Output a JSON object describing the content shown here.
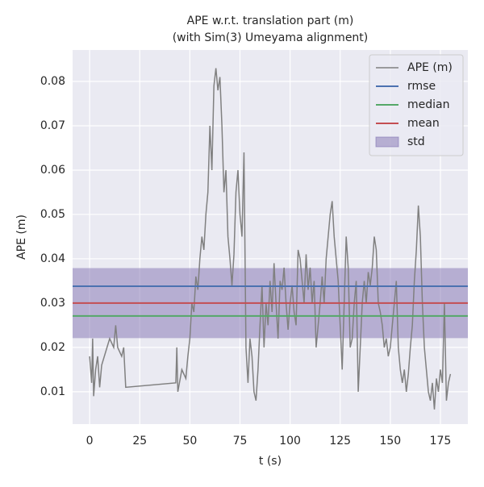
{
  "chart_data": {
    "type": "line",
    "title": [
      "APE w.r.t. translation part (m)",
      "(with Sim(3) Umeyama alignment)"
    ],
    "xlabel": "t (s)",
    "ylabel": "APE (m)",
    "xlim": [
      -8.5,
      188.7
    ],
    "ylim": [
      0.0027,
      0.0871
    ],
    "xticks": [
      0,
      25,
      50,
      75,
      100,
      125,
      150,
      175
    ],
    "yticks": [
      0.01,
      0.02,
      0.03,
      0.04,
      0.05,
      0.06,
      0.07,
      0.08
    ],
    "grid": true,
    "legend": "upper right",
    "series": [
      {
        "name": "APE (m)",
        "color": "#808080",
        "x": [
          0,
          1,
          1.5,
          2,
          3,
          4,
          5,
          6,
          8,
          10,
          12,
          13,
          14,
          16,
          17,
          18,
          43,
          43.5,
          44,
          46,
          48,
          49,
          50,
          51,
          52,
          53,
          54,
          55,
          56,
          57,
          58,
          59,
          60,
          61,
          62,
          63,
          64,
          65,
          66,
          67,
          68,
          69,
          70,
          71,
          72,
          73,
          74,
          75,
          76,
          77,
          78,
          79,
          80,
          81,
          82,
          83,
          84,
          85,
          86,
          87,
          88,
          89,
          90,
          91,
          92,
          93,
          94,
          95,
          96,
          97,
          98,
          99,
          100,
          101,
          102,
          103,
          104,
          105,
          106,
          107,
          108,
          109,
          110,
          111,
          112,
          113,
          114,
          115,
          116,
          117,
          118,
          119,
          120,
          121,
          122,
          123,
          124,
          125,
          126,
          127,
          128,
          129,
          130,
          131,
          132,
          133,
          134,
          135,
          136,
          137,
          138,
          139,
          140,
          141,
          142,
          143,
          144,
          145,
          146,
          147,
          148,
          149,
          150,
          151,
          152,
          153,
          154,
          155,
          156,
          157,
          158,
          159,
          160,
          161,
          162,
          163,
          164,
          165,
          166,
          167,
          168,
          169,
          170,
          171,
          172,
          173,
          174,
          175,
          176,
          177,
          178,
          179,
          180
        ],
        "values": [
          0.018,
          0.012,
          0.022,
          0.009,
          0.015,
          0.018,
          0.011,
          0.016,
          0.019,
          0.022,
          0.02,
          0.025,
          0.02,
          0.018,
          0.02,
          0.011,
          0.012,
          0.02,
          0.01,
          0.015,
          0.013,
          0.018,
          0.022,
          0.03,
          0.028,
          0.036,
          0.033,
          0.04,
          0.045,
          0.042,
          0.05,
          0.055,
          0.07,
          0.06,
          0.079,
          0.083,
          0.078,
          0.081,
          0.07,
          0.055,
          0.06,
          0.045,
          0.04,
          0.034,
          0.041,
          0.055,
          0.06,
          0.05,
          0.045,
          0.064,
          0.02,
          0.012,
          0.022,
          0.018,
          0.01,
          0.008,
          0.015,
          0.025,
          0.034,
          0.02,
          0.03,
          0.025,
          0.035,
          0.028,
          0.039,
          0.03,
          0.022,
          0.035,
          0.033,
          0.038,
          0.03,
          0.024,
          0.03,
          0.034,
          0.028,
          0.025,
          0.042,
          0.04,
          0.035,
          0.03,
          0.041,
          0.033,
          0.038,
          0.03,
          0.035,
          0.02,
          0.025,
          0.03,
          0.036,
          0.03,
          0.04,
          0.045,
          0.05,
          0.053,
          0.045,
          0.04,
          0.035,
          0.025,
          0.015,
          0.03,
          0.045,
          0.038,
          0.02,
          0.022,
          0.03,
          0.035,
          0.01,
          0.02,
          0.03,
          0.035,
          0.03,
          0.037,
          0.034,
          0.038,
          0.045,
          0.042,
          0.03,
          0.028,
          0.025,
          0.02,
          0.022,
          0.018,
          0.02,
          0.025,
          0.03,
          0.035,
          0.02,
          0.015,
          0.012,
          0.015,
          0.01,
          0.014,
          0.02,
          0.025,
          0.035,
          0.042,
          0.052,
          0.045,
          0.03,
          0.02,
          0.015,
          0.01,
          0.008,
          0.012,
          0.006,
          0.013,
          0.01,
          0.015,
          0.012,
          0.03,
          0.008,
          0.012,
          0.014
        ]
      }
    ],
    "stats": [
      {
        "name": "rmse",
        "value": 0.0338,
        "color": "#4c72b0"
      },
      {
        "name": "median",
        "value": 0.0271,
        "color": "#55a868"
      },
      {
        "name": "mean",
        "value": 0.03,
        "color": "#c44e52"
      }
    ],
    "std": {
      "name": "std",
      "value": 0.0079,
      "color": "#8172b2"
    }
  }
}
